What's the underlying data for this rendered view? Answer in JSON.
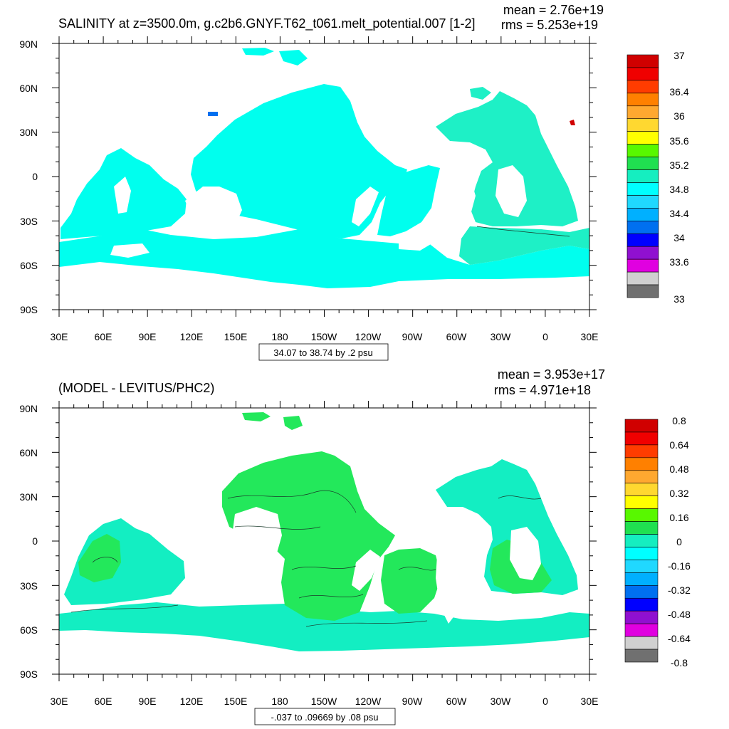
{
  "colors": {
    "ocean_upper": "#00ffee",
    "ocean_upper_north_atlantic": "#1ef0c6",
    "ocean_lower_green": "#23e85b",
    "ocean_lower_cyan": "#13eec2",
    "contour": "#1a3a2a",
    "frame": "#000000"
  },
  "panels": [
    {
      "id": "upper",
      "title": "SALINITY at z=3500.0m, g.c2b6.GNYF.T62_t061.melt_potential.007 [1-2]",
      "mean_label": "mean = 2.76e+19",
      "rms_label": "rms = 5.253e+19",
      "contour_info": "34.07 to 38.74 by .2 psu",
      "lat_ticks": [
        "90N",
        "60N",
        "30N",
        "0",
        "30S",
        "60S",
        "90S"
      ],
      "lon_ticks": [
        "30E",
        "60E",
        "90E",
        "120E",
        "150E",
        "180",
        "150W",
        "120W",
        "90W",
        "60W",
        "30W",
        "0",
        "30E"
      ],
      "colorbar": {
        "colors": [
          "#d00000",
          "#f00000",
          "#ff3c00",
          "#ff8000",
          "#ffa830",
          "#ffd830",
          "#ffff00",
          "#58f800",
          "#20e050",
          "#15eec0",
          "#00ffff",
          "#20d8ff",
          "#00b0ff",
          "#0070f0",
          "#0000ff",
          "#9010d0",
          "#e000e0",
          "#d0d0d0",
          "#707070"
        ],
        "labels": [
          "37",
          "36.4",
          "36",
          "35.6",
          "35.2",
          "34.8",
          "34.4",
          "34",
          "33.6",
          "33"
        ]
      }
    },
    {
      "id": "lower",
      "title": "(MODEL - LEVITUS/PHC2)",
      "mean_label": "mean = 3.953e+17",
      "rms_label": "rms = 4.971e+18",
      "contour_info": "-.037 to .09669 by .08 psu",
      "lat_ticks": [
        "90N",
        "60N",
        "30N",
        "0",
        "30S",
        "60S",
        "90S"
      ],
      "lon_ticks": [
        "30E",
        "60E",
        "90E",
        "120E",
        "150E",
        "180",
        "150W",
        "120W",
        "90W",
        "60W",
        "30W",
        "0",
        "30E"
      ],
      "colorbar": {
        "colors": [
          "#d00000",
          "#f00000",
          "#ff3c00",
          "#ff8000",
          "#ffa830",
          "#ffd830",
          "#ffff00",
          "#58f800",
          "#20e050",
          "#15eec0",
          "#00ffff",
          "#20d8ff",
          "#00b0ff",
          "#0070f0",
          "#0000ff",
          "#9010d0",
          "#e000e0",
          "#d0d0d0",
          "#707070"
        ],
        "labels": [
          "0.8",
          "0.64",
          "0.48",
          "0.32",
          "0.16",
          "0",
          "-0.16",
          "-0.32",
          "-0.48",
          "-0.64",
          "-0.8"
        ]
      }
    }
  ]
}
